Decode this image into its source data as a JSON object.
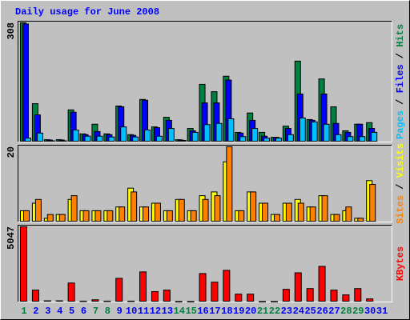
{
  "chart_data": [
    {
      "type": "bar",
      "title": "Daily usage for June 2008",
      "ylim": [
        0,
        308
      ],
      "yticks": [
        308
      ],
      "grid": false,
      "legend_separator": " / ",
      "series": [
        {
          "name": "Hits",
          "color": "#008040",
          "values": [
            308,
            99,
            6,
            6,
            83,
            21,
            46,
            21,
            93,
            19,
            110,
            39,
            64,
            6,
            35,
            149,
            130,
            170,
            25,
            75,
            25,
            12,
            41,
            209,
            58,
            163,
            91,
            29,
            46,
            50,
            null
          ]
        },
        {
          "name": "Files",
          "color": "#0000ff",
          "values": [
            305,
            70,
            5,
            5,
            77,
            19,
            27,
            19,
            91,
            17,
            108,
            37,
            56,
            5,
            29,
            101,
            101,
            160,
            23,
            56,
            15,
            12,
            35,
            124,
            56,
            124,
            48,
            25,
            46,
            35,
            null
          ]
        },
        {
          "name": "Pages",
          "color": "#00c0ff",
          "values": [
            10,
            23,
            3,
            3,
            31,
            15,
            15,
            13,
            39,
            13,
            31,
            15,
            35,
            4,
            25,
            45,
            48,
            60,
            14,
            35,
            10,
            10,
            19,
            62,
            52,
            46,
            19,
            14,
            14,
            25,
            null
          ]
        }
      ]
    },
    {
      "type": "bar",
      "ylim": [
        0,
        20
      ],
      "yticks": [
        20
      ],
      "grid": false,
      "legend_separator": " / ",
      "series": [
        {
          "name": "Visits",
          "color": "#ffff00",
          "values": [
            3,
            5,
            1,
            2,
            6,
            3,
            3,
            3,
            4,
            9,
            4,
            5,
            3,
            6,
            3,
            7,
            8,
            16,
            3,
            8,
            5,
            2,
            5,
            6,
            4,
            7,
            2,
            3,
            1,
            11,
            null
          ]
        },
        {
          "name": "Sites",
          "color": "#ff8000",
          "values": [
            3,
            6,
            2,
            2,
            7,
            3,
            3,
            3,
            4,
            8,
            4,
            5,
            3,
            6,
            3,
            6,
            7,
            20,
            3,
            8,
            5,
            2,
            5,
            5,
            4,
            7,
            2,
            4,
            1,
            10,
            null
          ]
        }
      ]
    },
    {
      "type": "bar",
      "ylim": [
        0,
        5047
      ],
      "yticks": [
        5047
      ],
      "grid": false,
      "legend_separator": " / ",
      "series": [
        {
          "name": "KBytes",
          "color": "#ff0000",
          "values": [
            5047,
            800,
            80,
            80,
            1275,
            60,
            150,
            60,
            1590,
            60,
            2020,
            700,
            800,
            40,
            40,
            1910,
            1330,
            2125,
            530,
            530,
            40,
            40,
            850,
            1960,
            900,
            2390,
            800,
            480,
            900,
            210,
            null
          ]
        }
      ],
      "categories": [
        "1",
        "2",
        "3",
        "4",
        "5",
        "6",
        "7",
        "8",
        "9",
        "10",
        "11",
        "12",
        "13",
        "14",
        "15",
        "16",
        "17",
        "18",
        "19",
        "20",
        "21",
        "22",
        "23",
        "24",
        "25",
        "26",
        "27",
        "28",
        "29",
        "30",
        "31"
      ],
      "category_colors": [
        "#008040",
        "#0000ff",
        "#0000ff",
        "#0000ff",
        "#0000ff",
        "#0000ff",
        "#008040",
        "#008040",
        "#0000ff",
        "#0000ff",
        "#0000ff",
        "#0000ff",
        "#0000ff",
        "#008040",
        "#008040",
        "#0000ff",
        "#0000ff",
        "#0000ff",
        "#0000ff",
        "#0000ff",
        "#008040",
        "#008040",
        "#0000ff",
        "#0000ff",
        "#0000ff",
        "#0000ff",
        "#0000ff",
        "#008040",
        "#008040",
        "#0000ff",
        "#0000ff"
      ]
    }
  ]
}
